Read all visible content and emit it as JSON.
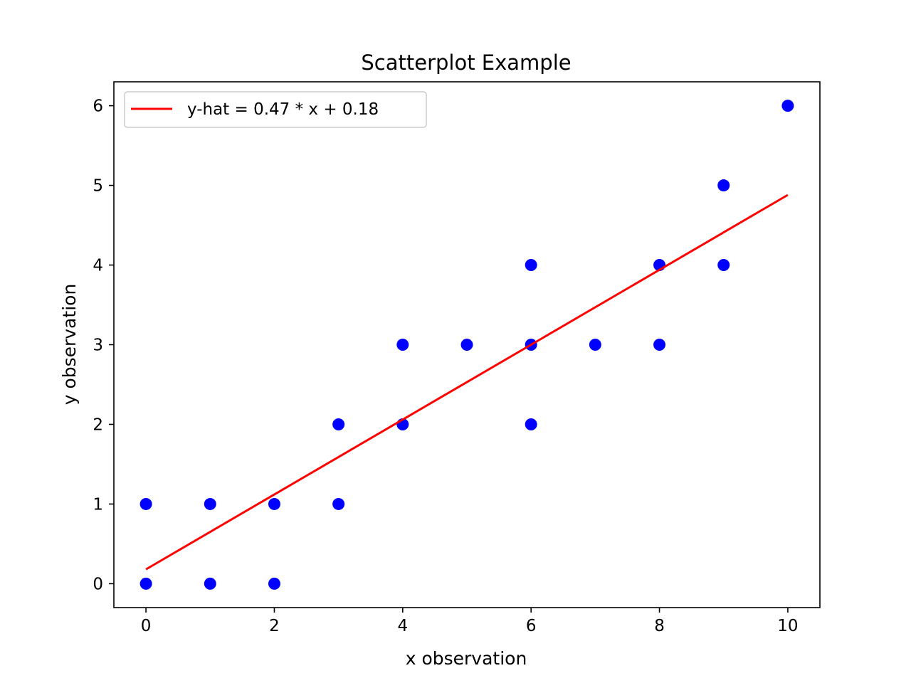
{
  "chart_data": {
    "type": "scatter",
    "title": "Scatterplot Example",
    "xlabel": "x observation",
    "ylabel": "y observation",
    "xlim": [
      -0.5,
      10.5
    ],
    "ylim": [
      -0.3,
      6.3
    ],
    "xticks": [
      0,
      2,
      4,
      6,
      8,
      10
    ],
    "yticks": [
      0,
      1,
      2,
      3,
      4,
      5,
      6
    ],
    "grid": false,
    "legend_position": "top-left",
    "series": [
      {
        "kind": "points",
        "color": "#0000ff",
        "points": [
          [
            0,
            0
          ],
          [
            0,
            1
          ],
          [
            1,
            0
          ],
          [
            1,
            1
          ],
          [
            2,
            0
          ],
          [
            2,
            1
          ],
          [
            3,
            1
          ],
          [
            3,
            2
          ],
          [
            4,
            2
          ],
          [
            4,
            3
          ],
          [
            5,
            3
          ],
          [
            6,
            2
          ],
          [
            6,
            3
          ],
          [
            6,
            4
          ],
          [
            7,
            3
          ],
          [
            8,
            3
          ],
          [
            8,
            4
          ],
          [
            9,
            4
          ],
          [
            9,
            5
          ],
          [
            10,
            6
          ]
        ]
      },
      {
        "kind": "line",
        "name": "y-hat = 0.47 * x + 0.18",
        "color": "#ff0000",
        "x": [
          0,
          10
        ],
        "y": [
          0.18,
          4.88
        ]
      }
    ]
  }
}
